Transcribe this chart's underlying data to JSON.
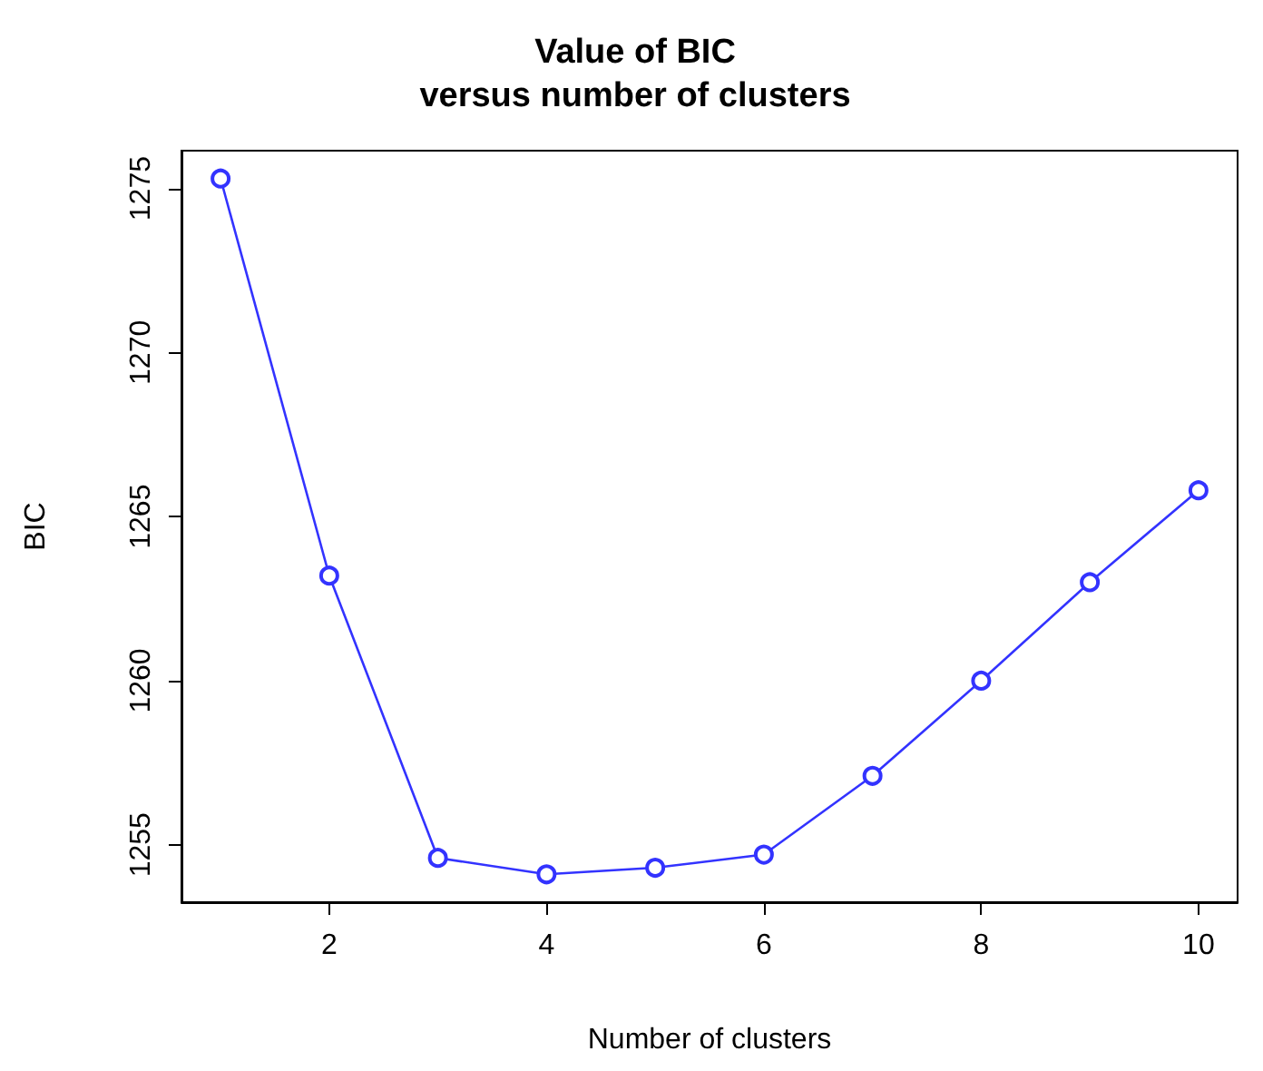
{
  "chart_data": {
    "type": "line",
    "title": "Value of BIC\nversus number of clusters",
    "xlabel": "Number of clusters",
    "ylabel": "BIC",
    "x": [
      1,
      2,
      3,
      4,
      5,
      6,
      7,
      8,
      9,
      10
    ],
    "series": [
      {
        "color": "#3333ff",
        "values": [
          1275.3,
          1263.2,
          1254.6,
          1254.1,
          1254.3,
          1254.7,
          1257.1,
          1260.0,
          1263.0,
          1265.8
        ]
      }
    ],
    "xlim": [
      0.64,
      10.36
    ],
    "xticks": [
      2,
      4,
      6,
      8,
      10
    ],
    "ylim": [
      1253.25,
      1276.15
    ],
    "yticks": [
      1255,
      1260,
      1265,
      1270,
      1275
    ],
    "marker": "circle",
    "line_style": "solid"
  }
}
